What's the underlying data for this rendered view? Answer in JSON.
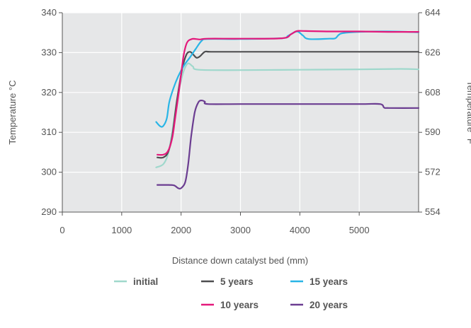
{
  "chart_data": {
    "type": "line",
    "xlabel": "Distance down catalyst bed (mm)",
    "ylabel": "Temperature °C",
    "ylabel_right": "Temperature °F",
    "xlim": [
      0,
      6000
    ],
    "ylim": [
      290,
      340
    ],
    "ylim_right": [
      554,
      644
    ],
    "x_ticks": [
      "0",
      "1000",
      "2000",
      "3000",
      "4000",
      "5000"
    ],
    "y_ticks": [
      "290",
      "300",
      "310",
      "320",
      "330",
      "340"
    ],
    "y_ticks_right": [
      "554",
      "572",
      "590",
      "608",
      "626",
      "644"
    ],
    "grid": true,
    "legend_position": "bottom",
    "background": "#e6e7e8",
    "series": [
      {
        "name": "initial",
        "color": "#9fd8cc",
        "x": [
          1580,
          1700,
          1780,
          1850,
          1920,
          2000,
          2060,
          2120,
          2200,
          2300,
          3000,
          4000,
          5000,
          5700,
          6000
        ],
        "y": [
          301.2,
          302.0,
          304.5,
          310.0,
          317.0,
          323.0,
          326.0,
          327.3,
          326.5,
          325.7,
          325.6,
          325.7,
          325.8,
          325.9,
          325.8
        ]
      },
      {
        "name": "5 years",
        "color": "#4d4d4f",
        "x": [
          1600,
          1700,
          1780,
          1850,
          1930,
          2020,
          2090,
          2150,
          2200,
          2260,
          2320,
          2400,
          2500,
          3000,
          4000,
          5000,
          6000
        ],
        "y": [
          303.7,
          303.7,
          305.0,
          309.0,
          318.0,
          326.0,
          329.5,
          330.2,
          329.6,
          328.7,
          329.1,
          330.2,
          330.2,
          330.2,
          330.2,
          330.2,
          330.2
        ]
      },
      {
        "name": "15 years",
        "color": "#29b5e6",
        "x": [
          1580,
          1650,
          1700,
          1760,
          1800,
          1870,
          1950,
          2050,
          2150,
          2250,
          2350,
          2450,
          3000,
          3700,
          3800,
          3950,
          4050,
          4150,
          4500,
          4600,
          4700,
          5000,
          5500,
          6000
        ],
        "y": [
          312.6,
          311.5,
          311.6,
          313.5,
          317.5,
          321.0,
          324.0,
          326.8,
          328.8,
          331.0,
          333.0,
          333.4,
          333.4,
          333.6,
          334.2,
          335.3,
          334.3,
          333.4,
          333.5,
          333.6,
          334.8,
          335.2,
          335.3,
          335.1
        ]
      },
      {
        "name": "10 years",
        "color": "#e4197b",
        "x": [
          1600,
          1700,
          1780,
          1850,
          1900,
          1970,
          2040,
          2100,
          2180,
          2250,
          2320,
          2450,
          3000,
          3700,
          3850,
          3950,
          4100,
          4500,
          5000,
          5500,
          6000
        ],
        "y": [
          304.4,
          304.4,
          305.3,
          308.5,
          313.5,
          321.0,
          329.0,
          332.5,
          333.4,
          333.4,
          333.3,
          333.5,
          333.5,
          333.6,
          334.6,
          335.4,
          335.4,
          335.3,
          335.3,
          335.2,
          335.2
        ]
      },
      {
        "name": "20 years",
        "color": "#6b3d91",
        "x": [
          1600,
          1750,
          1880,
          1950,
          2000,
          2070,
          2120,
          2170,
          2230,
          2290,
          2340,
          2400,
          2450,
          3000,
          4000,
          5000,
          5350,
          5420,
          5500,
          6000
        ],
        "y": [
          296.8,
          296.8,
          296.7,
          296.0,
          296.0,
          297.5,
          302.0,
          309.0,
          315.0,
          317.5,
          318.0,
          317.7,
          317.1,
          317.1,
          317.1,
          317.1,
          317.1,
          316.2,
          316.1,
          316.1
        ]
      }
    ]
  }
}
